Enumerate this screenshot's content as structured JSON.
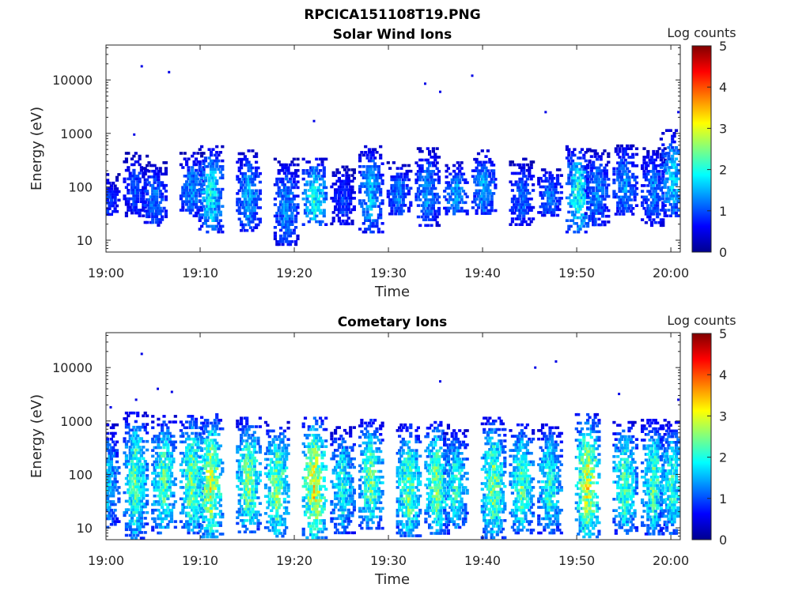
{
  "figure": {
    "title": "RPCICA151108T19.PNG"
  },
  "chart_data": [
    {
      "type": "heatmap",
      "title": "Solar Wind Ions",
      "xlabel": "Time",
      "ylabel": "Energy (eV)",
      "x_ticks": [
        "19:00",
        "19:10",
        "19:20",
        "19:30",
        "19:40",
        "19:50",
        "20:00"
      ],
      "xlim": [
        "19:00",
        "20:01"
      ],
      "y_scale": "log",
      "y_ticks": [
        10,
        100,
        1000,
        10000
      ],
      "y_tick_labels": [
        "10",
        "100",
        "1000",
        "10000"
      ],
      "ylim": [
        6,
        45000
      ],
      "colorbar": {
        "label": "Log counts",
        "range": [
          0,
          5
        ],
        "ticks": [
          "0",
          "1",
          "2",
          "3",
          "4",
          "5"
        ],
        "colormap": "jet"
      },
      "bursts": [
        {
          "t": "19:00",
          "emin": 30,
          "emax": 180,
          "peak": 0.9
        },
        {
          "t": "19:03",
          "emin": 30,
          "emax": 450,
          "peak": 1.0
        },
        {
          "t": "19:05",
          "emin": 20,
          "emax": 300,
          "peak": 1.2
        },
        {
          "t": "19:09",
          "emin": 30,
          "emax": 450,
          "peak": 1.3
        },
        {
          "t": "19:11",
          "emin": 15,
          "emax": 600,
          "peak": 1.8
        },
        {
          "t": "19:15",
          "emin": 15,
          "emax": 500,
          "peak": 1.4
        },
        {
          "t": "19:19",
          "emin": 8,
          "emax": 350,
          "peak": 1.3
        },
        {
          "t": "19:22",
          "emin": 20,
          "emax": 350,
          "peak": 1.9
        },
        {
          "t": "19:25",
          "emin": 20,
          "emax": 250,
          "peak": 0.9
        },
        {
          "t": "19:28",
          "emin": 15,
          "emax": 600,
          "peak": 1.5
        },
        {
          "t": "19:31",
          "emin": 30,
          "emax": 300,
          "peak": 1.2
        },
        {
          "t": "19:34",
          "emin": 20,
          "emax": 550,
          "peak": 1.3
        },
        {
          "t": "19:37",
          "emin": 30,
          "emax": 300,
          "peak": 1.4
        },
        {
          "t": "19:40",
          "emin": 30,
          "emax": 500,
          "peak": 1.4
        },
        {
          "t": "19:44",
          "emin": 20,
          "emax": 350,
          "peak": 1.1
        },
        {
          "t": "19:47",
          "emin": 30,
          "emax": 250,
          "peak": 1.2
        },
        {
          "t": "19:50",
          "emin": 15,
          "emax": 600,
          "peak": 1.9
        },
        {
          "t": "19:52",
          "emin": 20,
          "emax": 500,
          "peak": 1.3
        },
        {
          "t": "19:55",
          "emin": 30,
          "emax": 700,
          "peak": 1.3
        },
        {
          "t": "19:58",
          "emin": 20,
          "emax": 550,
          "peak": 1.2
        },
        {
          "t": "20:00",
          "emin": 30,
          "emax": 1200,
          "peak": 1.6
        }
      ],
      "isolated_points": [
        {
          "t": "19:03.8",
          "e": 18000
        },
        {
          "t": "19:06.7",
          "e": 14000
        },
        {
          "t": "19:33.9",
          "e": 8500
        },
        {
          "t": "19:35.5",
          "e": 6000
        },
        {
          "t": "19:38.9",
          "e": 12000
        },
        {
          "t": "19:46.7",
          "e": 2500
        },
        {
          "t": "19:22.1",
          "e": 1700
        },
        {
          "t": "19:03.0",
          "e": 950
        },
        {
          "t": "20:00.8",
          "e": 2500
        }
      ]
    },
    {
      "type": "heatmap",
      "title": "Cometary Ions",
      "xlabel": "Time",
      "ylabel": "Energy (eV)",
      "x_ticks": [
        "19:00",
        "19:10",
        "19:20",
        "19:30",
        "19:40",
        "19:50",
        "20:00"
      ],
      "xlim": [
        "19:00",
        "20:01"
      ],
      "y_scale": "log",
      "y_ticks": [
        10,
        100,
        1000,
        10000
      ],
      "y_tick_labels": [
        "10",
        "100",
        "1000",
        "10000"
      ],
      "ylim": [
        6,
        45000
      ],
      "colorbar": {
        "label": "Log counts",
        "range": [
          0,
          5
        ],
        "ticks": [
          "0",
          "1",
          "2",
          "3",
          "4",
          "5"
        ],
        "colormap": "jet"
      },
      "bursts": [
        {
          "t": "19:00",
          "emin": 10,
          "emax": 900,
          "peak": 1.6
        },
        {
          "t": "19:03",
          "emin": 6,
          "emax": 1500,
          "peak": 2.2
        },
        {
          "t": "19:06",
          "emin": 8,
          "emax": 1300,
          "peak": 2.2
        },
        {
          "t": "19:09",
          "emin": 8,
          "emax": 1300,
          "peak": 2.4
        },
        {
          "t": "19:11",
          "emin": 6,
          "emax": 1400,
          "peak": 2.7
        },
        {
          "t": "19:15",
          "emin": 8,
          "emax": 1200,
          "peak": 2.4
        },
        {
          "t": "19:18",
          "emin": 6,
          "emax": 1000,
          "peak": 2.4
        },
        {
          "t": "19:22",
          "emin": 6,
          "emax": 1200,
          "peak": 2.9
        },
        {
          "t": "19:25",
          "emin": 8,
          "emax": 800,
          "peak": 1.9
        },
        {
          "t": "19:28",
          "emin": 10,
          "emax": 1100,
          "peak": 2.3
        },
        {
          "t": "19:32",
          "emin": 6,
          "emax": 900,
          "peak": 2.3
        },
        {
          "t": "19:35",
          "emin": 8,
          "emax": 1000,
          "peak": 2.4
        },
        {
          "t": "19:37",
          "emin": 10,
          "emax": 700,
          "peak": 2.0
        },
        {
          "t": "19:41",
          "emin": 6,
          "emax": 1200,
          "peak": 2.4
        },
        {
          "t": "19:44",
          "emin": 8,
          "emax": 900,
          "peak": 2.2
        },
        {
          "t": "19:47",
          "emin": 8,
          "emax": 900,
          "peak": 2.0
        },
        {
          "t": "19:51",
          "emin": 6,
          "emax": 1400,
          "peak": 2.8
        },
        {
          "t": "19:55",
          "emin": 8,
          "emax": 1000,
          "peak": 2.2
        },
        {
          "t": "19:58",
          "emin": 8,
          "emax": 1100,
          "peak": 2.2
        },
        {
          "t": "20:00",
          "emin": 8,
          "emax": 1000,
          "peak": 2.0
        }
      ],
      "isolated_points": [
        {
          "t": "19:03.8",
          "e": 18000
        },
        {
          "t": "19:05.5",
          "e": 4000
        },
        {
          "t": "19:07",
          "e": 3500
        },
        {
          "t": "19:03.2",
          "e": 2500
        },
        {
          "t": "19:35.5",
          "e": 5500
        },
        {
          "t": "19:45.6",
          "e": 10000
        },
        {
          "t": "19:47.8",
          "e": 13000
        },
        {
          "t": "19:54.5",
          "e": 3200
        },
        {
          "t": "19:00.5",
          "e": 1800
        },
        {
          "t": "20:00.8",
          "e": 2500
        }
      ]
    }
  ]
}
